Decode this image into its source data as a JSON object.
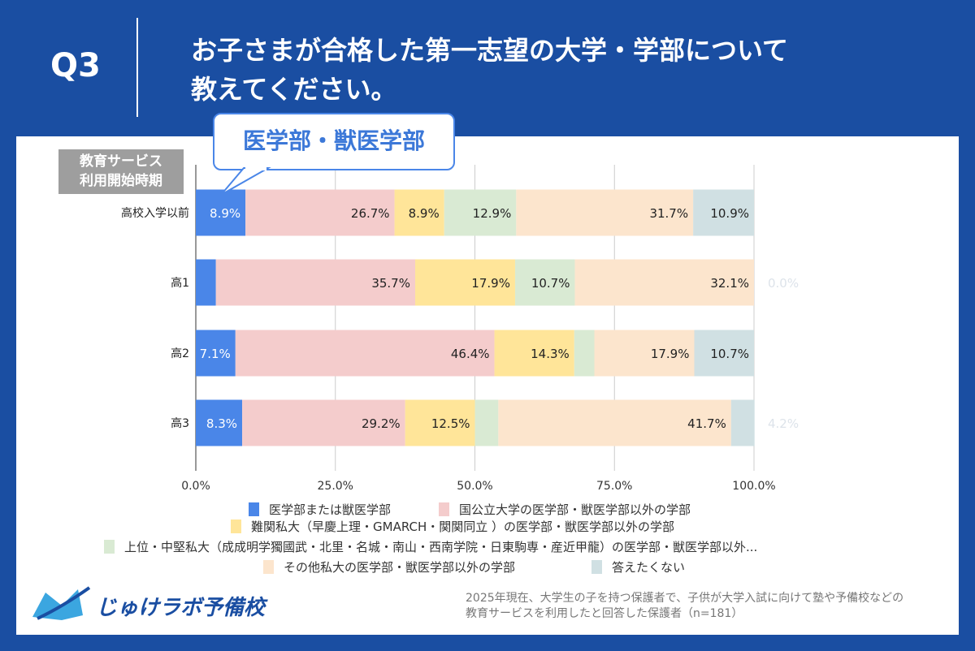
{
  "header": {
    "question": "Q3",
    "title_line1": "お子さまが合格した第一志望の大学・学部について",
    "title_line2": "教えてください。"
  },
  "callout": "医学部・獣医学部",
  "y_axis_title": [
    "教育サービス",
    "利用開始時期"
  ],
  "chart_data": {
    "type": "bar",
    "orientation": "horizontal",
    "stacked": true,
    "categories": [
      "高校入学以前",
      "高1",
      "高2",
      "高3"
    ],
    "xlim": [
      0,
      100
    ],
    "x_ticks": [
      "0.0%",
      "25.0%",
      "50.0%",
      "75.0%",
      "100.0%"
    ],
    "grid": true,
    "legend_position": "bottom",
    "series": [
      {
        "name": "医学部または獣医学部",
        "color": "#4a86e8",
        "values": [
          8.9,
          3.6,
          7.1,
          8.3
        ],
        "labels": [
          "8.9%",
          "3.6%",
          "7.1%",
          "8.3%"
        ]
      },
      {
        "name": "国公立大学の医学部・獣医学部以外の学部",
        "color": "#f4cccc",
        "values": [
          26.7,
          35.7,
          46.4,
          29.2
        ],
        "labels": [
          "26.7%",
          "35.7%",
          "46.4%",
          "29.2%"
        ]
      },
      {
        "name": "難関私大（早慶上理・GMARCH・関関同立 ）の医学部・獣医学部以外の学部",
        "color": "#ffe599",
        "values": [
          8.9,
          17.9,
          14.3,
          12.5
        ],
        "labels": [
          "8.9%",
          "17.9%",
          "14.3%",
          "12.5%"
        ]
      },
      {
        "name": "上位・中堅私大（成成明学獨國武・北里・名城・南山・西南学院・日東駒専・産近甲龍）の医学部・獣医学部以外...",
        "color": "#d9ead3",
        "values": [
          12.9,
          10.7,
          3.6,
          4.2
        ],
        "labels": [
          "12.9%",
          "10.7%",
          null,
          null
        ]
      },
      {
        "name": "その他私大の医学部・獣医学部以外の学部",
        "color": "#fce5cd",
        "values": [
          31.7,
          32.1,
          17.9,
          41.7
        ],
        "labels": [
          "31.7%",
          "32.1%",
          "17.9%",
          "41.7%"
        ]
      },
      {
        "name": "答えたくない",
        "color": "#d0e0e3",
        "values": [
          10.9,
          0.0,
          10.7,
          4.2
        ],
        "labels": [
          "10.9%",
          "0.0%",
          "10.7%",
          "4.2%"
        ]
      }
    ]
  },
  "logo": "じゅけラボ予備校",
  "note_line1": "2025年現在、大学生の子を持つ保護者で、子供が大学入試に向けて塾や予備校などの",
  "note_line2": "教育サービスを利用したと回答した保護者（n=181）"
}
